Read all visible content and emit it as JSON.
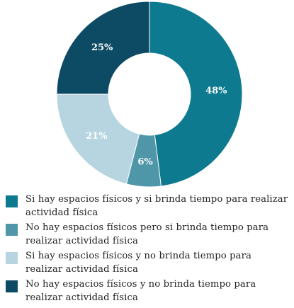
{
  "chart_data": {
    "type": "pie",
    "variant": "donut",
    "title": "",
    "value_suffix": "%",
    "slices": [
      {
        "label": "Si hay espacios físicos y si brinda tiempo para realizar actividad física",
        "value": 48,
        "color": "#0e7a8f"
      },
      {
        "label": "No hay espacios físicos pero si brinda tiempo para realizar actividad física",
        "value": 6,
        "color": "#4f96a8"
      },
      {
        "label": "Si hay espacios físicos y no brinda tiempo para realizar actividad física",
        "value": 21,
        "color": "#b7d5e0"
      },
      {
        "label": "No hay espacios físicos y no brinda tiempo para realizar actividad física",
        "value": 25,
        "color": "#0d4a63"
      }
    ],
    "legend_position": "bottom"
  }
}
